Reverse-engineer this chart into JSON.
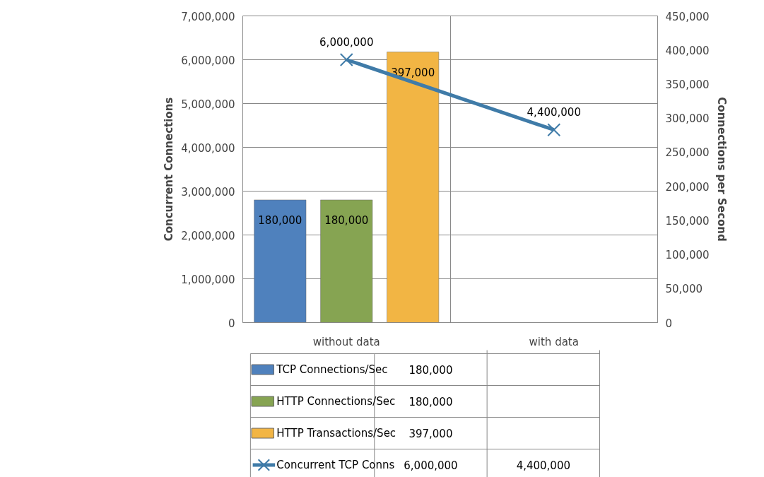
{
  "chart_data": {
    "type": "bar",
    "categories": [
      "without data",
      "with data"
    ],
    "series": [
      {
        "name": "TCP Connections/Sec",
        "color": "#4f81bd",
        "values": [
          180000,
          null
        ],
        "value_labels": [
          "180,000",
          null
        ],
        "axis": "y2"
      },
      {
        "name": "HTTP Connections/Sec",
        "color": "#86a452",
        "values": [
          180000,
          null
        ],
        "value_labels": [
          "180,000",
          null
        ],
        "axis": "y2"
      },
      {
        "name": "HTTP Transactions/Sec",
        "color": "#f2b544",
        "values": [
          397000,
          null
        ],
        "value_labels": [
          "397,000",
          null
        ],
        "axis": "y2"
      },
      {
        "name": "Concurrent TCP Conns",
        "type": "line",
        "color": "#3f7ba8",
        "values": [
          6000000,
          4400000
        ],
        "value_labels": [
          "6,000,000",
          "4,400,000"
        ],
        "marker": "cross"
      }
    ],
    "ylabel": "Concurrent Connections",
    "y2label": "Connections per Second",
    "ylim": [
      0,
      7000000
    ],
    "yticks": [
      {
        "value": 0,
        "label": "0"
      },
      {
        "value": 1000000,
        "label": "1,000,000"
      },
      {
        "value": 2000000,
        "label": "2,000,000"
      },
      {
        "value": 3000000,
        "label": "3,000,000"
      },
      {
        "value": 4000000,
        "label": "4,000,000"
      },
      {
        "value": 5000000,
        "label": "5,000,000"
      },
      {
        "value": 6000000,
        "label": "6,000,000"
      },
      {
        "value": 7000000,
        "label": "7,000,000"
      }
    ],
    "y2lim": [
      0,
      450000
    ],
    "y2ticks": [
      {
        "value": 0,
        "label": "0"
      },
      {
        "value": 50000,
        "label": "50,000"
      },
      {
        "value": 100000,
        "label": "100,000"
      },
      {
        "value": 150000,
        "label": "150,000"
      },
      {
        "value": 200000,
        "label": "200,000"
      },
      {
        "value": 250000,
        "label": "250,000"
      },
      {
        "value": 300000,
        "label": "300,000"
      },
      {
        "value": 350000,
        "label": "350,000"
      },
      {
        "value": 400000,
        "label": "400,000"
      },
      {
        "value": 450000,
        "label": "450,000"
      }
    ],
    "grid": true,
    "legend": "bottom"
  }
}
